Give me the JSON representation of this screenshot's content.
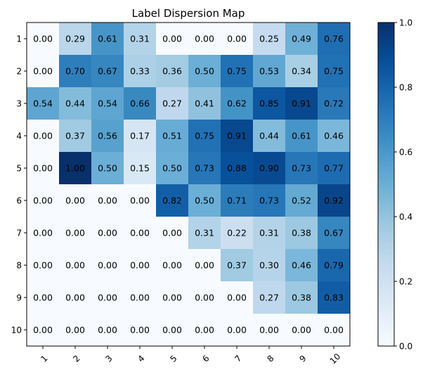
{
  "chart_data": {
    "type": "heatmap",
    "title": "Label Dispersion Map",
    "xlabel": "",
    "ylabel": "",
    "x_categories": [
      "1",
      "2",
      "3",
      "4",
      "5",
      "6",
      "7",
      "8",
      "9",
      "10"
    ],
    "y_categories": [
      "1",
      "2",
      "3",
      "4",
      "5",
      "6",
      "7",
      "8",
      "9",
      "10"
    ],
    "values": [
      [
        0.0,
        0.29,
        0.61,
        0.31,
        0.0,
        0.0,
        0.0,
        0.25,
        0.49,
        0.76
      ],
      [
        0.0,
        0.7,
        0.67,
        0.33,
        0.36,
        0.5,
        0.75,
        0.53,
        0.34,
        0.75
      ],
      [
        0.54,
        0.44,
        0.54,
        0.66,
        0.27,
        0.41,
        0.62,
        0.85,
        0.91,
        0.72
      ],
      [
        0.0,
        0.37,
        0.56,
        0.17,
        0.51,
        0.75,
        0.91,
        0.44,
        0.61,
        0.46
      ],
      [
        0.0,
        1.0,
        0.5,
        0.15,
        0.5,
        0.73,
        0.88,
        0.9,
        0.73,
        0.77
      ],
      [
        0.0,
        0.0,
        0.0,
        0.0,
        0.82,
        0.5,
        0.71,
        0.73,
        0.52,
        0.92
      ],
      [
        0.0,
        0.0,
        0.0,
        0.0,
        0.0,
        0.31,
        0.22,
        0.31,
        0.38,
        0.67
      ],
      [
        0.0,
        0.0,
        0.0,
        0.0,
        0.0,
        0.0,
        0.37,
        0.3,
        0.46,
        0.79
      ],
      [
        0.0,
        0.0,
        0.0,
        0.0,
        0.0,
        0.0,
        0.0,
        0.27,
        0.38,
        0.83
      ],
      [
        0.0,
        0.0,
        0.0,
        0.0,
        0.0,
        0.0,
        0.0,
        0.0,
        0.0,
        0.0
      ]
    ],
    "colormap": "Blues",
    "vmin": 0.0,
    "vmax": 1.0,
    "colorbar_ticks": [
      "0.0",
      "0.2",
      "0.4",
      "0.6",
      "0.8",
      "1.0"
    ],
    "x_tick_rotation": "45 degrees",
    "grid": false,
    "annotations": "cell values with 2 decimals"
  }
}
